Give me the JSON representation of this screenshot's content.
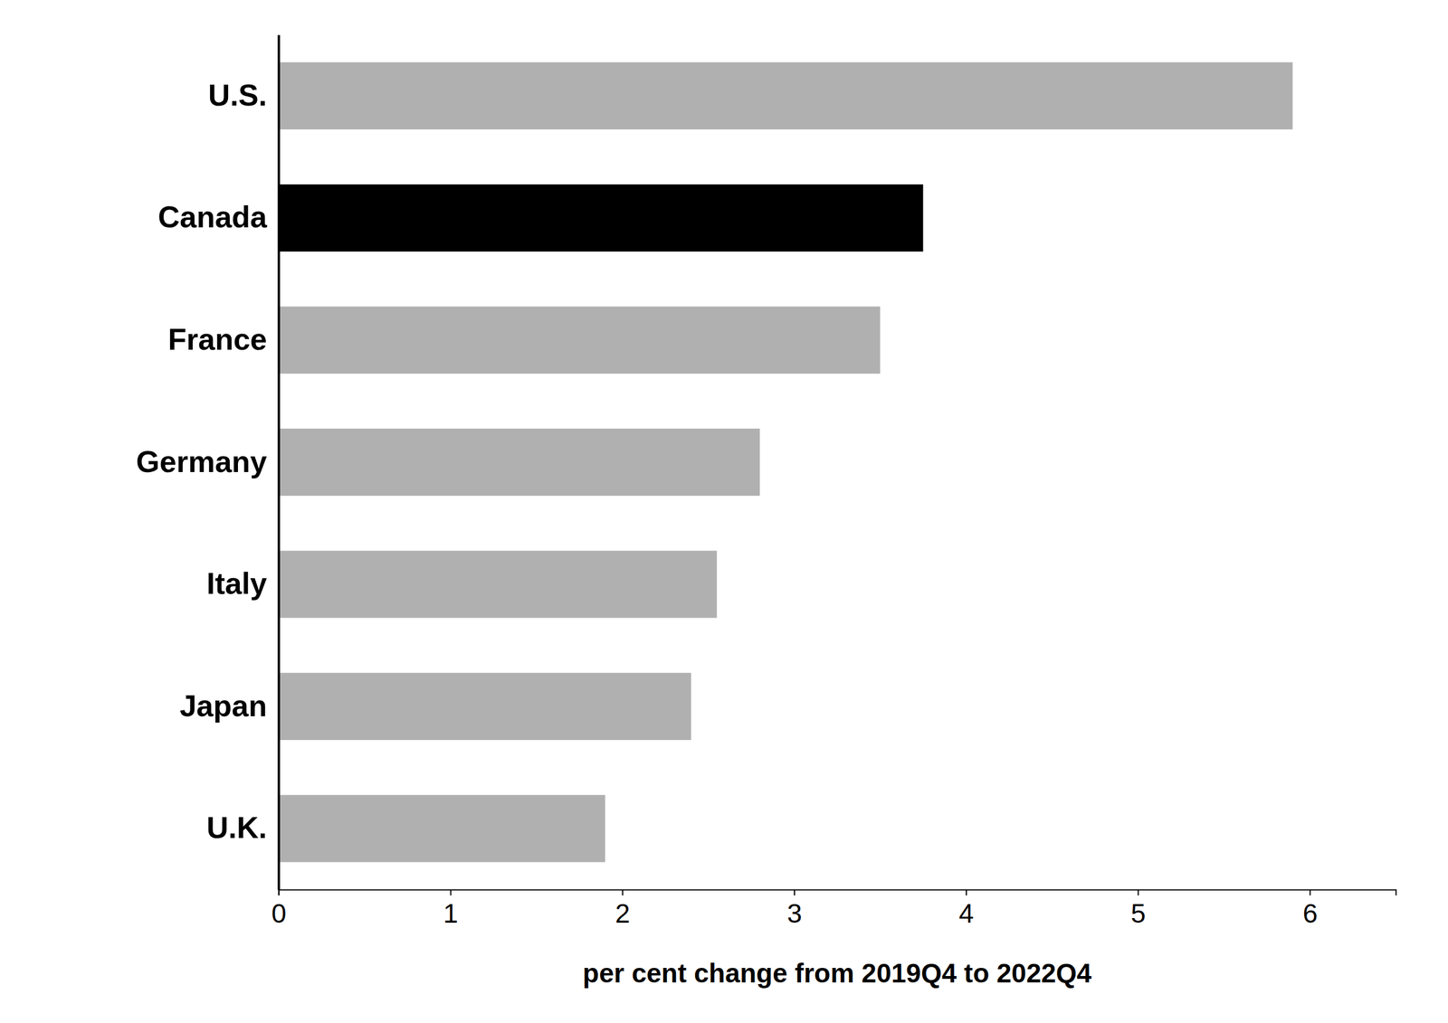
{
  "chart_data": {
    "type": "bar",
    "orientation": "horizontal",
    "categories": [
      "U.S.",
      "Canada",
      "France",
      "Germany",
      "Italy",
      "Japan",
      "U.K."
    ],
    "values": [
      5.9,
      3.75,
      3.5,
      2.8,
      2.55,
      2.4,
      1.9
    ],
    "colors": [
      "#b0b0b0",
      "#000000",
      "#b0b0b0",
      "#b0b0b0",
      "#b0b0b0",
      "#b0b0b0",
      "#b0b0b0"
    ],
    "x_label": "per cent change from 2019Q4 to 2022Q4",
    "xlim": [
      0,
      6.5
    ],
    "xticks": [
      0,
      1,
      2,
      3,
      4,
      5,
      6
    ],
    "grid": false
  }
}
